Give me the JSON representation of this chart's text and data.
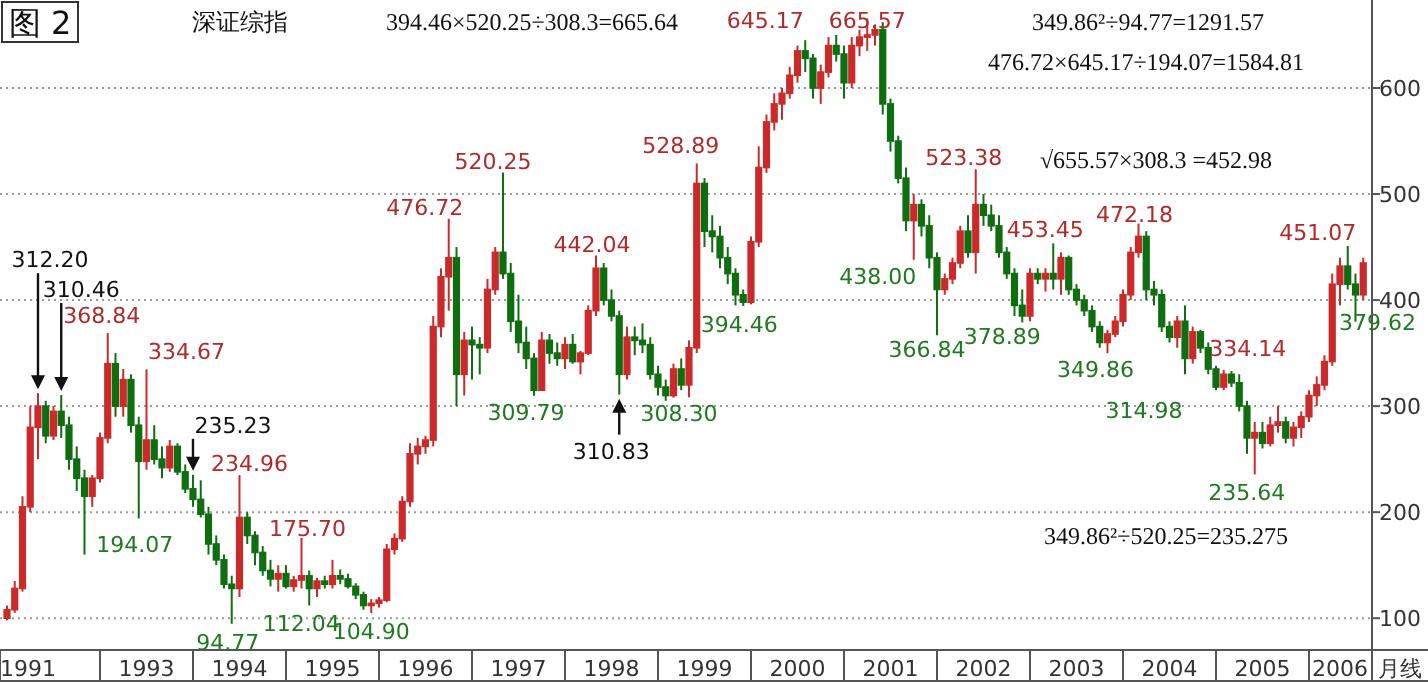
{
  "chart_data": {
    "type": "candlestick",
    "title": "图 2",
    "subtitle": "深证综指",
    "xlabel": "月线",
    "x": [
      "1992-01",
      "1992-02",
      "1992-03",
      "1992-04",
      "1992-05",
      "1992-06",
      "1992-07",
      "1992-08",
      "1992-09",
      "1992-10",
      "1992-11",
      "1992-12",
      "1993-01",
      "1993-02",
      "1993-03",
      "1993-04",
      "1993-05",
      "1993-06",
      "1993-07",
      "1993-08",
      "1993-09",
      "1993-10",
      "1993-11",
      "1993-12",
      "1994-01",
      "1994-02",
      "1994-03",
      "1994-04",
      "1994-05",
      "1994-06",
      "1994-07",
      "1994-08",
      "1994-09",
      "1994-10",
      "1994-11",
      "1994-12",
      "1995-01",
      "1995-02",
      "1995-03",
      "1995-04",
      "1995-05",
      "1995-06",
      "1995-07",
      "1995-08",
      "1995-09",
      "1995-10",
      "1995-11",
      "1995-12",
      "1996-01",
      "1996-02",
      "1996-03",
      "1996-04",
      "1996-05",
      "1996-06",
      "1996-07",
      "1996-08",
      "1996-09",
      "1996-10",
      "1996-11",
      "1996-12",
      "1997-01",
      "1997-02",
      "1997-03",
      "1997-04",
      "1997-05",
      "1997-06",
      "1997-07",
      "1997-08",
      "1997-09",
      "1997-10",
      "1997-11",
      "1997-12",
      "1998-01",
      "1998-02",
      "1998-03",
      "1998-04",
      "1998-05",
      "1998-06",
      "1998-07",
      "1998-08",
      "1998-09",
      "1998-10",
      "1998-11",
      "1998-12",
      "1999-01",
      "1999-02",
      "1999-03",
      "1999-04",
      "1999-05",
      "1999-06",
      "1999-07",
      "1999-08",
      "1999-09",
      "1999-10",
      "1999-11",
      "1999-12",
      "2000-01",
      "2000-02",
      "2000-03",
      "2000-04",
      "2000-05",
      "2000-06",
      "2000-07",
      "2000-08",
      "2000-09",
      "2000-10",
      "2000-11",
      "2000-12",
      "2001-01",
      "2001-02",
      "2001-03",
      "2001-04",
      "2001-05",
      "2001-06",
      "2001-07",
      "2001-08",
      "2001-09",
      "2001-10",
      "2001-11",
      "2001-12",
      "2002-01",
      "2002-02",
      "2002-03",
      "2002-04",
      "2002-05",
      "2002-06",
      "2002-07",
      "2002-08",
      "2002-09",
      "2002-10",
      "2002-11",
      "2002-12",
      "2003-01",
      "2003-02",
      "2003-03",
      "2003-04",
      "2003-05",
      "2003-06",
      "2003-07",
      "2003-08",
      "2003-09",
      "2003-10",
      "2003-11",
      "2003-12",
      "2004-01",
      "2004-02",
      "2004-03",
      "2004-04",
      "2004-05",
      "2004-06",
      "2004-07",
      "2004-08",
      "2004-09",
      "2004-10",
      "2004-11",
      "2004-12",
      "2005-01",
      "2005-02",
      "2005-03",
      "2005-04",
      "2005-05",
      "2005-06",
      "2005-07",
      "2005-08",
      "2005-09",
      "2005-10",
      "2005-11",
      "2005-12",
      "2006-01",
      "2006-02",
      "2006-03",
      "2006-04",
      "2006-05",
      "2006-06",
      "2006-07",
      "2006-08"
    ],
    "ohlc": [
      [
        100,
        112,
        98,
        108
      ],
      [
        108,
        135,
        105,
        128
      ],
      [
        128,
        215,
        125,
        205
      ],
      [
        205,
        300,
        200,
        280
      ],
      [
        280,
        312.2,
        250,
        300
      ],
      [
        300,
        305,
        265,
        272
      ],
      [
        272,
        300,
        268,
        295
      ],
      [
        295,
        310.46,
        270,
        282
      ],
      [
        282,
        290,
        240,
        250
      ],
      [
        250,
        262,
        220,
        232
      ],
      [
        232,
        240,
        160,
        215
      ],
      [
        215,
        235,
        205,
        232
      ],
      [
        232,
        275,
        228,
        270
      ],
      [
        270,
        368.84,
        265,
        340
      ],
      [
        340,
        350,
        290,
        300
      ],
      [
        300,
        335,
        290,
        325
      ],
      [
        325,
        330,
        275,
        282
      ],
      [
        282,
        290,
        194.07,
        248
      ],
      [
        248,
        334.67,
        240,
        268
      ],
      [
        268,
        282,
        245,
        250
      ],
      [
        250,
        262,
        232,
        242
      ],
      [
        242,
        268,
        238,
        262
      ],
      [
        262,
        265,
        235,
        238
      ],
      [
        238,
        245,
        218,
        222
      ],
      [
        222,
        235.23,
        205,
        212
      ],
      [
        212,
        230,
        195,
        198
      ],
      [
        198,
        205,
        160,
        170
      ],
      [
        170,
        178,
        150,
        155
      ],
      [
        155,
        160,
        128,
        132
      ],
      [
        132,
        140,
        94.77,
        128
      ],
      [
        128,
        234.96,
        120,
        195
      ],
      [
        195,
        200,
        170,
        178
      ],
      [
        178,
        182,
        150,
        162
      ],
      [
        162,
        168,
        140,
        145
      ],
      [
        145,
        155,
        130,
        137
      ],
      [
        137,
        150,
        125,
        142
      ],
      [
        142,
        150,
        128,
        130
      ],
      [
        130,
        140,
        125,
        136
      ],
      [
        136,
        175.7,
        128,
        140
      ],
      [
        140,
        145,
        112.04,
        128
      ],
      [
        128,
        138,
        120,
        135
      ],
      [
        135,
        140,
        128,
        132
      ],
      [
        132,
        155,
        128,
        140
      ],
      [
        140,
        146,
        132,
        137
      ],
      [
        137,
        142,
        128,
        130
      ],
      [
        130,
        133,
        118,
        122
      ],
      [
        122,
        125,
        108,
        112
      ],
      [
        112,
        118,
        104.9,
        114
      ],
      [
        114,
        120,
        110,
        117
      ],
      [
        117,
        170,
        115,
        165
      ],
      [
        165,
        180,
        160,
        175
      ],
      [
        175,
        215,
        172,
        210
      ],
      [
        210,
        265,
        205,
        255
      ],
      [
        255,
        270,
        245,
        262
      ],
      [
        262,
        272,
        255,
        268
      ],
      [
        268,
        385,
        262,
        375
      ],
      [
        375,
        430,
        365,
        422
      ],
      [
        422,
        476.72,
        390,
        440
      ],
      [
        440,
        450,
        300,
        330
      ],
      [
        330,
        370,
        310,
        362
      ],
      [
        362,
        375,
        325,
        358
      ],
      [
        358,
        365,
        330,
        355
      ],
      [
        355,
        420,
        350,
        410
      ],
      [
        410,
        450,
        405,
        445
      ],
      [
        445,
        520.25,
        420,
        425
      ],
      [
        425,
        435,
        370,
        380
      ],
      [
        380,
        405,
        350,
        360
      ],
      [
        360,
        375,
        335,
        345
      ],
      [
        345,
        350,
        309.79,
        315
      ],
      [
        315,
        370,
        315,
        362
      ],
      [
        362,
        368,
        340,
        350
      ],
      [
        350,
        360,
        338,
        345
      ],
      [
        345,
        365,
        335,
        358
      ],
      [
        358,
        368,
        340,
        342
      ],
      [
        342,
        352,
        330,
        350
      ],
      [
        350,
        395,
        348,
        390
      ],
      [
        390,
        442.04,
        385,
        430
      ],
      [
        430,
        435,
        395,
        400
      ],
      [
        400,
        410,
        380,
        385
      ],
      [
        385,
        390,
        310.83,
        330
      ],
      [
        330,
        375,
        325,
        365
      ],
      [
        365,
        375,
        348,
        362
      ],
      [
        362,
        378,
        350,
        358
      ],
      [
        358,
        365,
        325,
        330
      ],
      [
        330,
        338,
        310,
        318
      ],
      [
        318,
        325,
        305,
        310
      ],
      [
        310,
        340,
        308,
        335
      ],
      [
        335,
        345,
        315,
        320
      ],
      [
        320,
        362,
        308.3,
        355
      ],
      [
        355,
        528.89,
        350,
        510
      ],
      [
        510,
        515,
        450,
        465
      ],
      [
        465,
        480,
        445,
        460
      ],
      [
        460,
        470,
        430,
        440
      ],
      [
        440,
        450,
        415,
        425
      ],
      [
        425,
        430,
        395,
        405
      ],
      [
        405,
        410,
        394.46,
        398
      ],
      [
        398,
        460,
        396,
        455
      ],
      [
        455,
        545,
        450,
        525
      ],
      [
        525,
        575,
        520,
        568
      ],
      [
        568,
        595,
        560,
        585
      ],
      [
        585,
        600,
        570,
        595
      ],
      [
        595,
        620,
        590,
        612
      ],
      [
        612,
        640,
        605,
        635
      ],
      [
        635,
        645.17,
        615,
        628
      ],
      [
        628,
        632,
        590,
        600
      ],
      [
        600,
        622,
        585,
        615
      ],
      [
        615,
        648,
        610,
        640
      ],
      [
        640,
        650,
        625,
        632
      ],
      [
        632,
        640,
        590,
        605
      ],
      [
        605,
        648,
        600,
        640
      ],
      [
        640,
        655,
        630,
        648
      ],
      [
        648,
        665.57,
        635,
        650
      ],
      [
        650,
        660,
        640,
        655
      ],
      [
        655,
        662,
        575,
        585
      ],
      [
        585,
        590,
        540,
        550
      ],
      [
        550,
        555,
        510,
        515
      ],
      [
        515,
        525,
        465,
        475
      ],
      [
        475,
        500,
        438,
        490
      ],
      [
        490,
        495,
        460,
        470
      ],
      [
        470,
        480,
        430,
        440
      ],
      [
        440,
        445,
        366.84,
        410
      ],
      [
        410,
        425,
        405,
        420
      ],
      [
        420,
        440,
        415,
        435
      ],
      [
        435,
        470,
        430,
        465
      ],
      [
        465,
        480,
        440,
        445
      ],
      [
        445,
        523.38,
        425,
        490
      ],
      [
        490,
        500,
        470,
        480
      ],
      [
        480,
        490,
        465,
        470
      ],
      [
        470,
        480,
        440,
        445
      ],
      [
        445,
        450,
        420,
        425
      ],
      [
        425,
        430,
        385,
        395
      ],
      [
        395,
        410,
        378.89,
        385
      ],
      [
        385,
        430,
        380,
        425
      ],
      [
        425,
        430,
        415,
        420
      ],
      [
        420,
        430,
        408,
        425
      ],
      [
        425,
        453.45,
        410,
        420
      ],
      [
        420,
        445,
        405,
        440
      ],
      [
        440,
        442,
        405,
        410
      ],
      [
        410,
        415,
        395,
        400
      ],
      [
        400,
        405,
        385,
        390
      ],
      [
        390,
        395,
        370,
        375
      ],
      [
        375,
        380,
        355,
        360
      ],
      [
        360,
        372,
        349.86,
        368
      ],
      [
        368,
        385,
        365,
        380
      ],
      [
        380,
        410,
        375,
        405
      ],
      [
        405,
        450,
        400,
        445
      ],
      [
        445,
        472.18,
        440,
        460
      ],
      [
        460,
        465,
        400,
        410
      ],
      [
        410,
        418,
        395,
        405
      ],
      [
        405,
        410,
        370,
        375
      ],
      [
        375,
        380,
        360,
        365
      ],
      [
        365,
        385,
        355,
        380
      ],
      [
        380,
        395,
        330,
        345
      ],
      [
        345,
        375,
        340,
        370
      ],
      [
        370,
        372,
        350,
        355
      ],
      [
        355,
        360,
        330,
        335
      ],
      [
        335,
        338,
        314.98,
        318
      ],
      [
        318,
        334.14,
        315,
        330
      ],
      [
        330,
        333,
        318,
        322
      ],
      [
        322,
        330,
        295,
        300
      ],
      [
        300,
        305,
        255,
        270
      ],
      [
        270,
        285,
        235.64,
        275
      ],
      [
        275,
        285,
        260,
        265
      ],
      [
        265,
        290,
        262,
        282
      ],
      [
        282,
        300,
        275,
        285
      ],
      [
        285,
        290,
        265,
        270
      ],
      [
        270,
        285,
        262,
        280
      ],
      [
        280,
        295,
        270,
        290
      ],
      [
        290,
        315,
        285,
        310
      ],
      [
        310,
        328,
        300,
        320
      ],
      [
        320,
        348,
        315,
        342
      ],
      [
        342,
        425,
        338,
        415
      ],
      [
        415,
        440,
        395,
        432
      ],
      [
        432,
        451.07,
        410,
        415
      ],
      [
        415,
        425,
        379.62,
        405
      ],
      [
        405,
        440,
        400,
        435
      ]
    ],
    "xlim": [
      "1991-12-04",
      "2006-09-05"
    ],
    "xticks": [
      {
        "value": "1991-12-04",
        "label": "1991"
      },
      {
        "value": "1993-07",
        "label": "1993"
      },
      {
        "value": "1994-07",
        "label": "1994"
      },
      {
        "value": "1995-07",
        "label": "1995"
      },
      {
        "value": "1996-07",
        "label": "1996"
      },
      {
        "value": "1997-07",
        "label": "1997"
      },
      {
        "value": "1998-07",
        "label": "1998"
      },
      {
        "value": "1999-07",
        "label": "1999"
      },
      {
        "value": "2000-07",
        "label": "2000"
      },
      {
        "value": "2001-07",
        "label": "2001"
      },
      {
        "value": "2002-07",
        "label": "2002"
      },
      {
        "value": "2003-07",
        "label": "2003"
      },
      {
        "value": "2004-07",
        "label": "2004"
      },
      {
        "value": "2005-07",
        "label": "2005"
      },
      {
        "value": "2006-05",
        "label": "2006"
      }
    ],
    "ylim": [
      70,
      683
    ],
    "yticks": [
      100,
      200,
      300,
      400,
      500,
      600
    ],
    "grid": "y",
    "annotations": [
      "394.46×520.25÷308.3=665.64",
      "349.86²÷94.77=1291.57",
      "476.72×645.17÷194.07=1584.81",
      "√655.57×308.3 =452.98",
      "349.86²÷520.25=235.275",
      {
        "text": "312.20",
        "x": "1992-05",
        "y": 312.2
      },
      {
        "text": "310.46",
        "x": "1992-08",
        "y": 310.46
      },
      {
        "text": "368.84",
        "x": "1993-02",
        "y": 368.84
      },
      {
        "text": "334.67",
        "x": "1993-07",
        "y": 334.67
      },
      {
        "text": "235.23",
        "x": "1994-01",
        "y": 235.23
      },
      {
        "text": "234.96",
        "x": "1994-07",
        "y": 234.96
      },
      {
        "text": "194.07",
        "x": "1993-06",
        "y": 194.07
      },
      {
        "text": "94.77",
        "x": "1994-06",
        "y": 94.77
      },
      {
        "text": "175.70",
        "x": "1995-03",
        "y": 175.7
      },
      {
        "text": "112.04",
        "x": "1995-04",
        "y": 112.04
      },
      {
        "text": "104.90",
        "x": "1995-12",
        "y": 104.9
      },
      {
        "text": "476.72",
        "x": "1996-10",
        "y": 476.72
      },
      {
        "text": "520.25",
        "x": "1997-05",
        "y": 520.25
      },
      {
        "text": "309.79",
        "x": "1997-09",
        "y": 309.79
      },
      {
        "text": "442.04",
        "x": "1998-05",
        "y": 442.04
      },
      {
        "text": "310.83",
        "x": "1998-08",
        "y": 310.83
      },
      {
        "text": "308.30",
        "x": "1999-05",
        "y": 308.3
      },
      {
        "text": "528.89",
        "x": "1999-06",
        "y": 528.89
      },
      {
        "text": "394.46",
        "x": "1999-12",
        "y": 394.46
      },
      {
        "text": "645.17",
        "x": "2000-08",
        "y": 645.17
      },
      {
        "text": "665.57",
        "x": "2001-04",
        "y": 665.57
      },
      {
        "text": "438.00",
        "x": "2001-10",
        "y": 438
      },
      {
        "text": "366.84",
        "x": "2002-01",
        "y": 366.84
      },
      {
        "text": "523.38",
        "x": "2002-06",
        "y": 523.38
      },
      {
        "text": "378.89",
        "x": "2002-12",
        "y": 378.89
      },
      {
        "text": "453.45",
        "x": "2003-04",
        "y": 453.45
      },
      {
        "text": "472.18",
        "x": "2004-03",
        "y": 472.18
      },
      {
        "text": "349.86",
        "x": "2003-11",
        "y": 349.86
      },
      {
        "text": "314.98",
        "x": "2005-01",
        "y": 314.98
      },
      {
        "text": "334.14",
        "x": "2005-02",
        "y": 334.14
      },
      {
        "text": "235.64",
        "x": "2005-06",
        "y": 235.64
      },
      {
        "text": "451.07",
        "x": "2006-06",
        "y": 451.07
      },
      {
        "text": "379.62",
        "x": "2006-07",
        "y": 379.62
      }
    ]
  }
}
